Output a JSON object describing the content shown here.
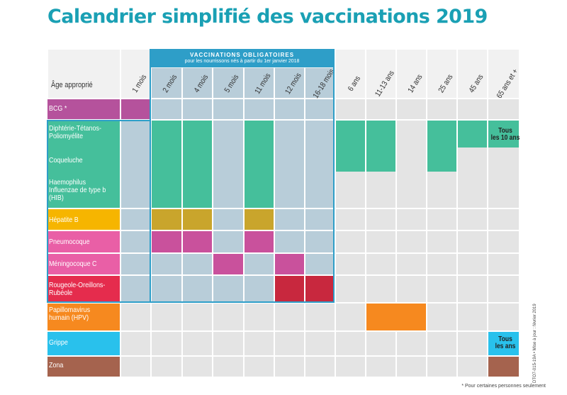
{
  "title": "Calendrier simplifié des vaccinations 2019",
  "age_label": "Âge approprié",
  "mandatory": {
    "title": "VACCINATIONS OBLIGATOIRES",
    "subtitle": "pour les nourrissons nés à partir du 1er janvier 2018"
  },
  "ages": [
    "1 mois",
    "2 mois",
    "4 mois",
    "5 mois",
    "11 mois",
    "12 mois",
    "16-18 mois",
    "6 ans",
    "11-13 ans",
    "14 ans",
    "25 ans",
    "45 ans",
    "65 ans et +"
  ],
  "vaccines": [
    {
      "label": "BCG *",
      "color": "#b5529c"
    },
    {
      "label": "Diphtérie-Tétanos-\nPoliomyélite",
      "color": "#45bf9b"
    },
    {
      "label": "Coqueluche",
      "color": "#45bf9b"
    },
    {
      "label": "Haemophilus\nInfluenzae de type b\n(HIB)",
      "color": "#45bf9b"
    },
    {
      "label": "Hépatite B",
      "color": "#f6b500"
    },
    {
      "label": "Pneumocoque",
      "color": "#e95fa6"
    },
    {
      "label": "Méningocoque C",
      "color": "#e95fa6"
    },
    {
      "label": "Rougeole-Oreillons-\nRubéole",
      "color": "#e52c4d"
    },
    {
      "label": "Papillomavirus\nhumain (HPV)",
      "color": "#f6891f"
    },
    {
      "label": "Grippe",
      "color": "#29c1ec"
    },
    {
      "label": "Zona",
      "color": "#a5634e"
    }
  ],
  "notes": {
    "dtp": "Tous\nles 10 ans",
    "grippe": "Tous\nles ans"
  },
  "footnote": "* Pour certaines personnes seulement",
  "sidenote": "DTO7-015-19A • Mise à jour : février 2019"
}
